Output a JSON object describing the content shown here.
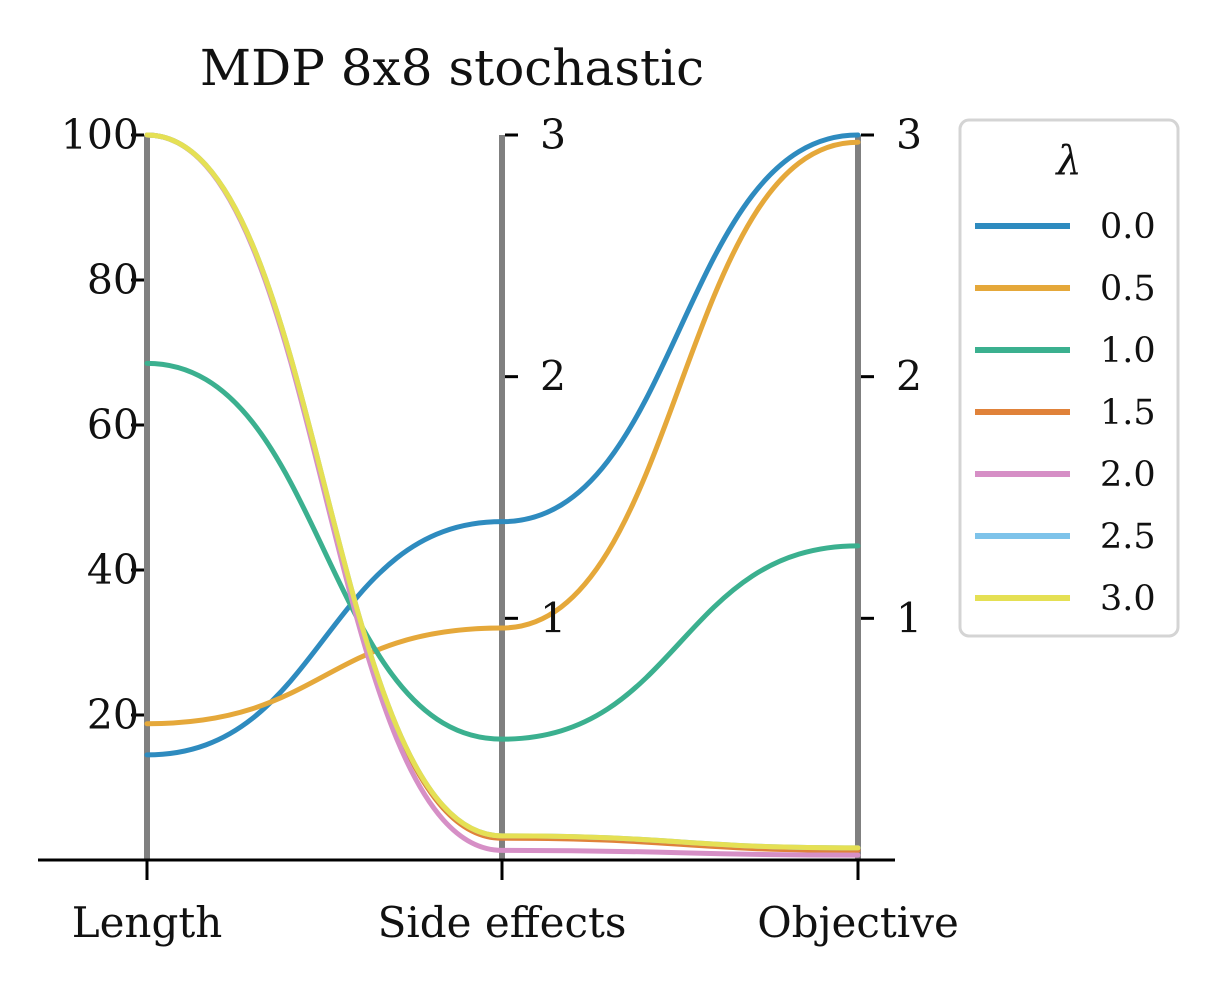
{
  "chart_data": {
    "type": "parallel_coordinates",
    "title": "MDP 8x8 stochastic",
    "axes": [
      {
        "name": "Length",
        "range": [
          0,
          100
        ],
        "ticks": [
          "20",
          "40",
          "60",
          "80",
          "100"
        ],
        "tick_values": [
          20,
          40,
          60,
          80,
          100
        ]
      },
      {
        "name": "Side effects",
        "range": [
          0,
          3
        ],
        "ticks": [
          "1",
          "2",
          "3"
        ],
        "tick_values": [
          1,
          2,
          3
        ]
      },
      {
        "name": "Objective",
        "range": [
          0,
          3
        ],
        "ticks": [
          "1",
          "2",
          "3"
        ],
        "tick_values": [
          1,
          2,
          3
        ]
      }
    ],
    "legend": {
      "title": "λ",
      "position": "right"
    },
    "series": [
      {
        "name": "0.0",
        "color": "#2e8bbf",
        "values": [
          14.5,
          1.4,
          3.0
        ]
      },
      {
        "name": "0.5",
        "color": "#e5a83a",
        "values": [
          18.8,
          0.96,
          2.97
        ]
      },
      {
        "name": "1.0",
        "color": "#3bb08f",
        "values": [
          68.5,
          0.5,
          1.3
        ]
      },
      {
        "name": "1.5",
        "color": "#e0823a",
        "values": [
          100,
          0.09,
          0.04
        ]
      },
      {
        "name": "2.0",
        "color": "#d68fc6",
        "values": [
          100,
          0.04,
          0.02
        ]
      },
      {
        "name": "2.5",
        "color": "#7ec3ea",
        "values": [
          100,
          0.1,
          0.05
        ]
      },
      {
        "name": "3.0",
        "color": "#e5e054",
        "values": [
          100,
          0.1,
          0.05
        ]
      }
    ]
  }
}
